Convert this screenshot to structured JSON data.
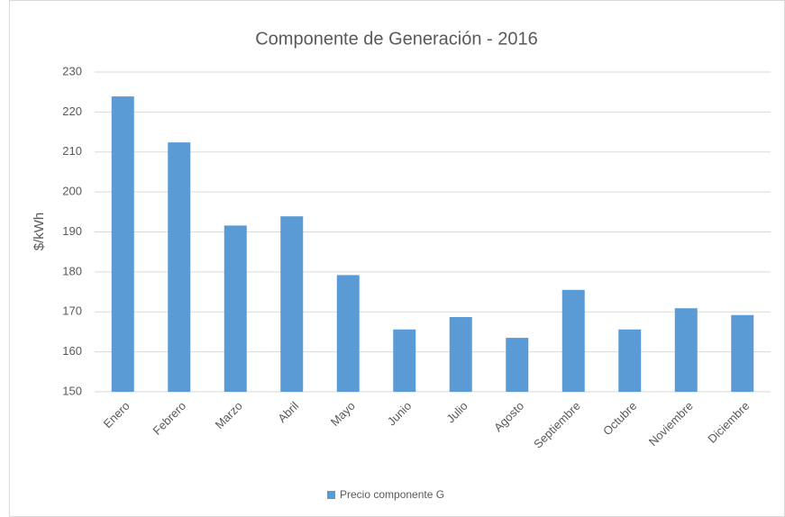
{
  "chart_data": {
    "type": "bar",
    "title": "Componente de Generación - 2016",
    "y_label": "$/kWh",
    "categories": [
      "Enero",
      "Febrero",
      "Marzo",
      "Abril",
      "Mayo",
      "Junio",
      "Julio",
      "Agosto",
      "Septiembre",
      "Octubre",
      "Noviembre",
      "Diciembre"
    ],
    "series": [
      {
        "name": "Precio componente G",
        "color": "#5b9bd5",
        "values": [
          223.9,
          212.4,
          191.6,
          193.9,
          179.2,
          165.6,
          168.7,
          163.5,
          175.5,
          165.6,
          170.9,
          169.2
        ]
      }
    ],
    "ylim": [
      150,
      230
    ],
    "yticks": [
      150,
      160,
      170,
      180,
      190,
      200,
      210,
      220,
      230
    ],
    "grid": true,
    "legend": "bottom"
  }
}
